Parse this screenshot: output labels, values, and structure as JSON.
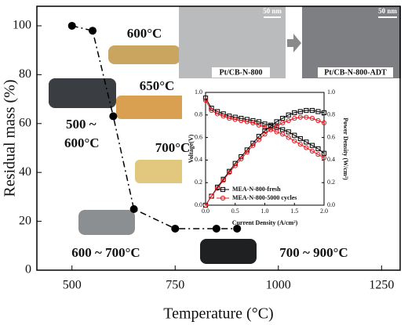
{
  "chart_data": [
    {
      "type": "line",
      "x_label": "Temperature (°C)",
      "y_label": "Residual mass (%)",
      "x": [
        500,
        550,
        600,
        650,
        750,
        850,
        900
      ],
      "series": [
        {
          "values": [
            100,
            98,
            63,
            25,
            17,
            17,
            17
          ],
          "color": "#000000",
          "marker": "dot",
          "dash": "dashdot"
        }
      ],
      "xlim": [
        415,
        1295
      ],
      "ylim": [
        0,
        108
      ],
      "xticks": [
        500,
        750,
        1000,
        1250
      ],
      "yticks": [
        0,
        20,
        40,
        60,
        80,
        100
      ],
      "annotations": [
        "600°C",
        "650°C",
        "700°C",
        "500 ~",
        "600°C",
        "600 ~ 700°C",
        "700 ~ 900°C",
        "Pt/CB-N-800",
        "Pt/CB-N-800-ADT",
        "50 nm",
        "50 nm"
      ]
    },
    {
      "type": "line",
      "x_label": "Current Density (A/cm²)",
      "y_label": "Voltage(V)",
      "y2_label": "Power Density (W/cm²)",
      "x": [
        0,
        0.1,
        0.2,
        0.3,
        0.4,
        0.5,
        0.6,
        0.7,
        0.8,
        0.9,
        1.0,
        1.1,
        1.2,
        1.3,
        1.4,
        1.5,
        1.6,
        1.7,
        1.8,
        1.9,
        2.0
      ],
      "series": [
        {
          "name": "MEA-N-800-fresh",
          "color": "#000000",
          "marker": "square",
          "values": [
            0.95,
            0.86,
            0.83,
            0.81,
            0.79,
            0.78,
            0.77,
            0.76,
            0.75,
            0.74,
            0.72,
            0.71,
            0.69,
            0.67,
            0.65,
            0.62,
            0.59,
            0.56,
            0.53,
            0.5,
            0.46
          ]
        },
        {
          "name": "MEA-N-800-5000 cycles",
          "color": "#e8141c",
          "marker": "circle",
          "values": [
            0.93,
            0.84,
            0.81,
            0.79,
            0.77,
            0.76,
            0.75,
            0.74,
            0.73,
            0.71,
            0.69,
            0.67,
            0.65,
            0.63,
            0.6,
            0.57,
            0.54,
            0.51,
            0.48,
            0.45,
            0.42
          ]
        },
        {
          "color": "#000000",
          "marker": "square",
          "axis": "y2",
          "values": [
            0,
            0.08,
            0.16,
            0.23,
            0.3,
            0.37,
            0.43,
            0.49,
            0.55,
            0.61,
            0.66,
            0.7,
            0.74,
            0.77,
            0.8,
            0.82,
            0.83,
            0.84,
            0.84,
            0.83,
            0.82
          ]
        },
        {
          "color": "#e8141c",
          "marker": "circle",
          "axis": "y2",
          "values": [
            0,
            0.08,
            0.15,
            0.22,
            0.29,
            0.35,
            0.41,
            0.47,
            0.53,
            0.58,
            0.63,
            0.67,
            0.7,
            0.73,
            0.75,
            0.77,
            0.78,
            0.78,
            0.77,
            0.75,
            0.73
          ]
        }
      ],
      "xlim": [
        0,
        2.0
      ],
      "ylim": [
        0,
        1.0
      ],
      "y2lim": [
        0,
        1.0
      ],
      "xticks": [
        {
          "value": 0,
          "label": "0.0"
        },
        0.5,
        {
          "value": 1,
          "label": "1.0"
        },
        1.5,
        {
          "value": 2,
          "label": "2.0"
        }
      ],
      "yticks": [
        {
          "value": 0,
          "label": "0.0"
        },
        0.2,
        0.4,
        0.6,
        0.8,
        {
          "value": 1,
          "label": "1.0"
        }
      ],
      "y2ticks": [
        {
          "value": 0,
          "label": "0.0"
        },
        0.2,
        0.4,
        0.6,
        0.8,
        {
          "value": 1,
          "label": "1.0"
        }
      ],
      "legend": "lower-center"
    }
  ]
}
